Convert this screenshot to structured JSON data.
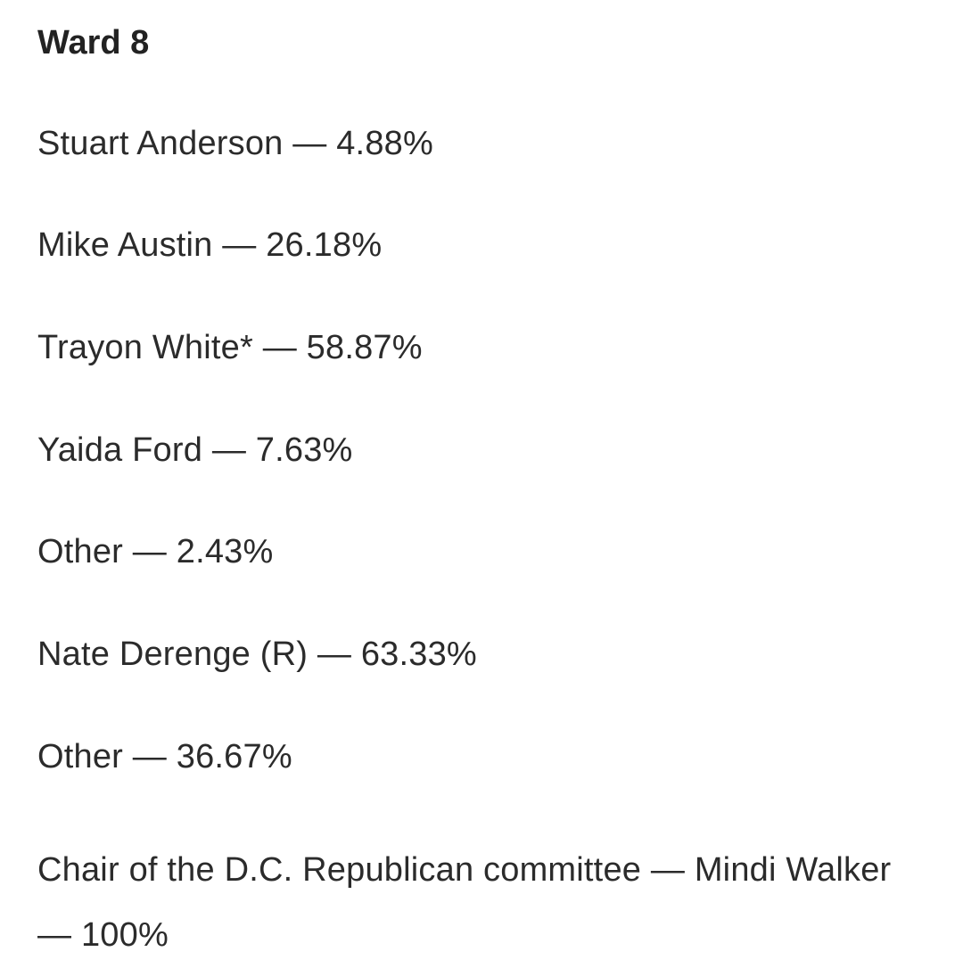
{
  "heading": "Ward 8",
  "results": [
    "Stuart Anderson — 4.88%",
    "Mike Austin — 26.18%",
    "Trayon White* — 58.87%",
    "Yaida Ford — 7.63%",
    "Other — 2.43%",
    "Nate Derenge (R) — 63.33%",
    "Other — 36.67%"
  ],
  "chair_line": "Chair of the D.C. Republican committee — Mindi Walker — 100%"
}
